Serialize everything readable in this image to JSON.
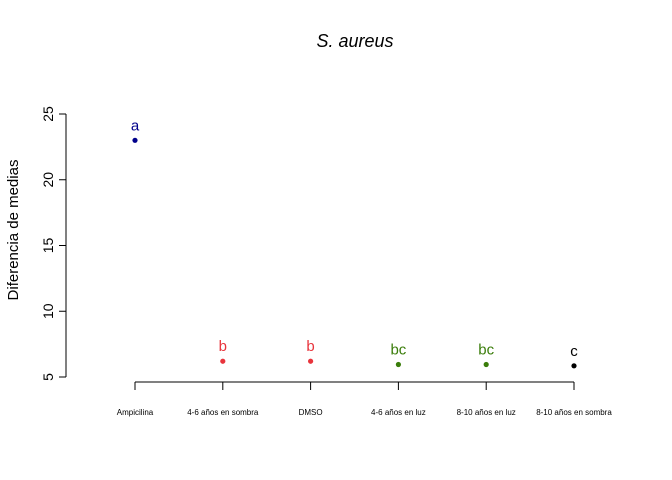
{
  "chart_data": {
    "type": "scatter",
    "title": "S. aureus",
    "xlabel": "",
    "ylabel": "Diferencia de medias",
    "ylim": [
      5,
      25
    ],
    "yticks": [
      5,
      10,
      15,
      20,
      25
    ],
    "grid": false,
    "categories": [
      "Ampicilina",
      "4-6 años en sombra",
      "DMSO",
      "4-6 años en luz",
      "8-10 años en luz",
      "8-10 años en sombra"
    ],
    "values": [
      23.0,
      6.2,
      6.2,
      5.95,
      5.95,
      5.85
    ],
    "group_labels": [
      "a",
      "b",
      "b",
      "bc",
      "bc",
      "c"
    ],
    "colors": [
      "#00008B",
      "#E8343C",
      "#E8343C",
      "#3A7D0A",
      "#3A7D0A",
      "#000000"
    ]
  }
}
